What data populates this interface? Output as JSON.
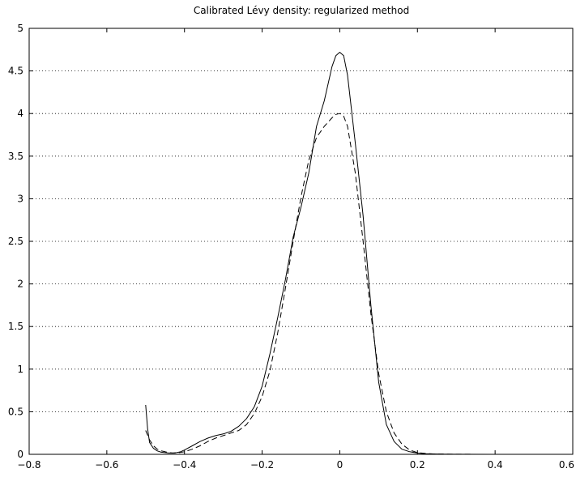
{
  "chart_data": {
    "type": "line",
    "title": "Calibrated Lévy density: regularized method",
    "xlabel": "",
    "ylabel": "",
    "xlim": [
      -0.8,
      0.6
    ],
    "ylim": [
      0,
      5
    ],
    "x_ticks": [
      -0.8,
      -0.6,
      -0.4,
      -0.2,
      0,
      0.2,
      0.4,
      0.6
    ],
    "x_tick_labels": [
      "−0.8",
      "−0.6",
      "−0.4",
      "−0.2",
      "0",
      "0.2",
      "0.4",
      "0.6"
    ],
    "y_ticks": [
      0,
      0.5,
      1,
      1.5,
      2,
      2.5,
      3,
      3.5,
      4,
      4.5,
      5
    ],
    "y_tick_labels": [
      "0",
      "0.5",
      "1",
      "1.5",
      "2",
      "2.5",
      "3",
      "3.5",
      "4",
      "4.5",
      "5"
    ],
    "grid": "y-dotted",
    "legend": "none",
    "series": [
      {
        "style": "solid",
        "color": "#000000",
        "x": [
          -0.5,
          -0.495,
          -0.49,
          -0.48,
          -0.47,
          -0.46,
          -0.45,
          -0.44,
          -0.43,
          -0.42,
          -0.41,
          -0.4,
          -0.38,
          -0.36,
          -0.34,
          -0.32,
          -0.3,
          -0.28,
          -0.26,
          -0.24,
          -0.22,
          -0.2,
          -0.18,
          -0.16,
          -0.14,
          -0.12,
          -0.1,
          -0.08,
          -0.06,
          -0.04,
          -0.02,
          -0.01,
          0,
          0.01,
          0.02,
          0.04,
          0.06,
          0.08,
          0.1,
          0.12,
          0.14,
          0.16,
          0.18,
          0.2,
          0.22,
          0.24,
          0.26,
          0.3,
          0.4,
          0.5,
          0.6
        ],
        "y": [
          0.58,
          0.3,
          0.14,
          0.07,
          0.04,
          0.025,
          0.02,
          0.015,
          0.015,
          0.02,
          0.03,
          0.05,
          0.1,
          0.15,
          0.19,
          0.22,
          0.24,
          0.27,
          0.33,
          0.42,
          0.56,
          0.8,
          1.18,
          1.6,
          2.05,
          2.55,
          2.9,
          3.3,
          3.85,
          4.15,
          4.55,
          4.68,
          4.72,
          4.68,
          4.45,
          3.65,
          2.8,
          1.75,
          0.85,
          0.35,
          0.15,
          0.06,
          0.03,
          0.015,
          0.008,
          0.005,
          0.003,
          0.001,
          0,
          0,
          0
        ]
      },
      {
        "style": "dashed",
        "color": "#000000",
        "x": [
          -0.5,
          -0.49,
          -0.48,
          -0.47,
          -0.46,
          -0.45,
          -0.44,
          -0.43,
          -0.42,
          -0.4,
          -0.38,
          -0.36,
          -0.34,
          -0.32,
          -0.3,
          -0.28,
          -0.26,
          -0.24,
          -0.22,
          -0.2,
          -0.18,
          -0.16,
          -0.14,
          -0.12,
          -0.1,
          -0.08,
          -0.06,
          -0.04,
          -0.02,
          -0.01,
          0,
          0.01,
          0.02,
          0.04,
          0.06,
          0.08,
          0.1,
          0.12,
          0.14,
          0.16,
          0.18,
          0.2,
          0.22,
          0.24,
          0.3,
          0.4,
          0.5,
          0.6
        ],
        "y": [
          0.28,
          0.17,
          0.1,
          0.06,
          0.04,
          0.03,
          0.02,
          0.015,
          0.015,
          0.03,
          0.06,
          0.1,
          0.15,
          0.19,
          0.22,
          0.25,
          0.28,
          0.35,
          0.48,
          0.68,
          0.98,
          1.42,
          1.95,
          2.5,
          3.02,
          3.45,
          3.72,
          3.85,
          3.95,
          3.99,
          4.0,
          3.97,
          3.85,
          3.3,
          2.5,
          1.65,
          0.95,
          0.5,
          0.25,
          0.12,
          0.05,
          0.02,
          0.01,
          0.005,
          0.001,
          0,
          0,
          0
        ]
      }
    ]
  }
}
